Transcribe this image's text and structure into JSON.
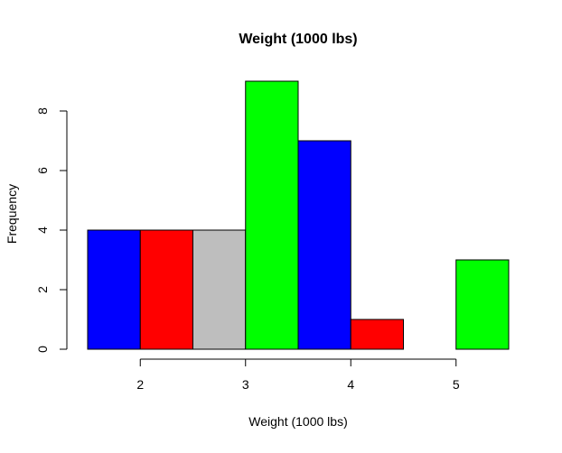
{
  "chart_data": {
    "type": "bar",
    "title": "Weight (1000 lbs)",
    "xlabel": "Weight (1000 lbs)",
    "ylabel": "Frequency",
    "bins": [
      {
        "start": 1.5,
        "end": 2.0,
        "value": 4,
        "color": "#0000ff"
      },
      {
        "start": 2.0,
        "end": 2.5,
        "value": 4,
        "color": "#ff0000"
      },
      {
        "start": 2.5,
        "end": 3.0,
        "value": 4,
        "color": "#bebebe"
      },
      {
        "start": 3.0,
        "end": 3.5,
        "value": 9,
        "color": "#00ff00"
      },
      {
        "start": 3.5,
        "end": 4.0,
        "value": 7,
        "color": "#0000ff"
      },
      {
        "start": 4.0,
        "end": 4.5,
        "value": 1,
        "color": "#ff0000"
      },
      {
        "start": 4.5,
        "end": 5.0,
        "value": 0,
        "color": "#bebebe"
      },
      {
        "start": 5.0,
        "end": 5.5,
        "value": 3,
        "color": "#00ff00"
      }
    ],
    "xlim": [
      1.5,
      5.5
    ],
    "ylim": [
      0,
      9
    ],
    "x_ticks": [
      2,
      3,
      4,
      5
    ],
    "x_tick_labels": [
      "2",
      "3",
      "4",
      "5"
    ],
    "y_ticks": [
      0,
      2,
      4,
      6,
      8
    ],
    "y_tick_labels": [
      "0",
      "2",
      "4",
      "6",
      "8"
    ],
    "grid": false,
    "legend": "none"
  }
}
